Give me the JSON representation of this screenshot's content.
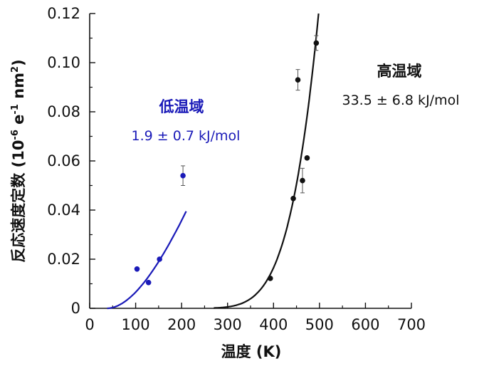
{
  "chart_data": {
    "type": "scatter",
    "xlabel": "温度 (K)",
    "ylabel": "反応速度定数 (10⁻⁶ e⁻¹ nm²)",
    "xlim": [
      0,
      700
    ],
    "ylim": [
      0,
      0.12
    ],
    "xticks": [
      "0",
      "100",
      "200",
      "300",
      "400",
      "500",
      "600",
      "700"
    ],
    "yticks": [
      "0",
      "0.02",
      "0.04",
      "0.06",
      "0.08",
      "0.10",
      "0.12"
    ],
    "series": [
      {
        "name": "低温域",
        "color": "#1a1ab8",
        "points": [
          {
            "x": 103,
            "y": 0.016
          },
          {
            "x": 128,
            "y": 0.0105
          },
          {
            "x": 152,
            "y": 0.02
          },
          {
            "x": 203,
            "y": 0.054,
            "err": 0.004
          }
        ],
        "fit": {
          "activation_energy_kJmol": 1.9,
          "x_range": [
            30,
            210
          ],
          "y_at_end": 0.0395
        }
      },
      {
        "name": "高温域",
        "color": "#111111",
        "points": [
          {
            "x": 393,
            "y": 0.0122
          },
          {
            "x": 443,
            "y": 0.0447
          },
          {
            "x": 453,
            "y": 0.093,
            "err": 0.0042
          },
          {
            "x": 463,
            "y": 0.052,
            "err": 0.005
          },
          {
            "x": 473,
            "y": 0.0612
          },
          {
            "x": 493,
            "y": 0.108,
            "err": 0.003
          }
        ],
        "fit": {
          "activation_energy_kJmol": 33.5,
          "x_range": [
            270,
            498
          ],
          "y_at_end": 0.12
        }
      }
    ],
    "annotations": [
      {
        "series": "低温域",
        "title": "低温域",
        "value": "1.9 ± 0.7 kJ/mol"
      },
      {
        "series": "高温域",
        "title": "高温域",
        "value": "33.5 ± 6.8 kJ/mol"
      }
    ]
  },
  "y_title": {
    "main": "反応速度定数 (10",
    "exp1": "-6",
    "mid": " e",
    "exp2": "-1",
    "mid2": " nm",
    "exp3": "2",
    "end": ")"
  }
}
